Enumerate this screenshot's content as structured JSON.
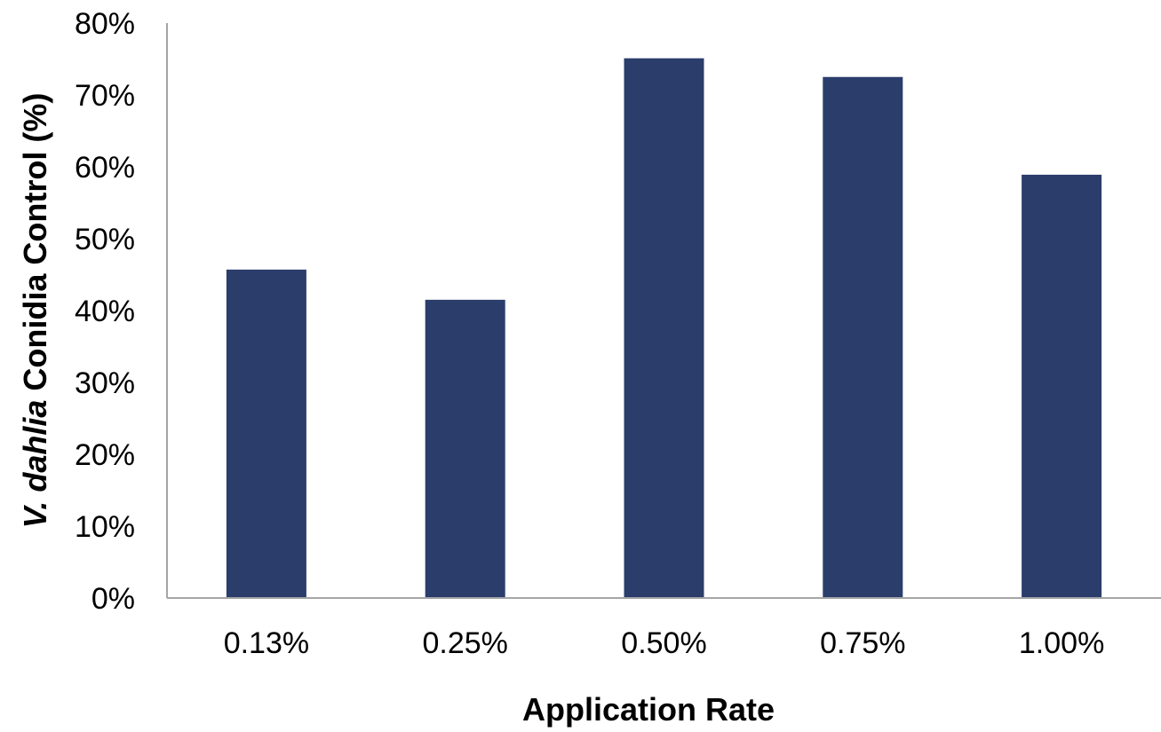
{
  "chart_data": {
    "type": "bar",
    "title": "",
    "xlabel": "Application Rate",
    "ylabel_parts": [
      {
        "text": "V. dahlia",
        "italic": true
      },
      {
        "text": " Conidia Control (%)",
        "italic": false
      }
    ],
    "categories": [
      "0.13%",
      "0.25%",
      "0.50%",
      "0.75%",
      "1.00%"
    ],
    "series": [
      {
        "values": [
          0.457,
          0.415,
          0.751,
          0.725,
          0.589
        ]
      }
    ],
    "ylim": [
      0,
      0.8
    ],
    "yticks": [
      0,
      0.1,
      0.2,
      0.3,
      0.4,
      0.5,
      0.6,
      0.7,
      0.8
    ],
    "ytick_labels": [
      "0%",
      "10%",
      "20%",
      "30%",
      "40%",
      "50%",
      "60%",
      "70%",
      "80%"
    ],
    "grid": false,
    "legend": "none",
    "colors": {
      "bar": "#2b3d6b",
      "axis": "#a6a6a6",
      "text": "#000000"
    }
  }
}
